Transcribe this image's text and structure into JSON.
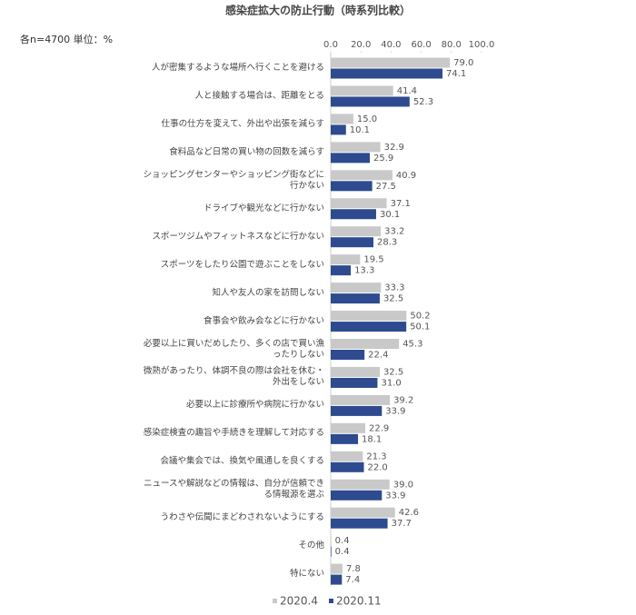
{
  "chart_data": {
    "type": "bar",
    "orientation": "horizontal",
    "title": "感染症拡大の防止行動（時系列比較）",
    "note": "各n=4700 単位：%",
    "categories": [
      "人が密集するような場所へ行くことを避ける",
      "人と接触する場合は、距離をとる",
      "仕事の仕方を変えて、外出や出張を減らす",
      "食料品など日常の買い物の回数を減らす",
      "ショッピングセンターやショッピング街などに行かない",
      "ドライブや観光などに行かない",
      "スポーツジムやフィットネスなどに行かない",
      "スポーツをしたり公園で遊ぶことをしない",
      "知人や友人の家を訪問しない",
      "食事会や飲み会などに行かない",
      "必要以上に買いだめしたり、多くの店で買い漁ったりしない",
      "微熱があったり、体調不良の際は会社を休む・外出をしない",
      "必要以上に診療所や病院に行かない",
      "感染症検査の趣旨や手続きを理解して対応する",
      "会議や集会では、換気や風通しを良くする",
      "ニュースや解説などの情報は、自分が信頼できる情報源を選ぶ",
      "うわさや伝聞にまどわされないようにする",
      "その他",
      "特にない"
    ],
    "series": [
      {
        "name": "2020.4",
        "color": "#c9c9c9",
        "values": [
          79.0,
          41.4,
          15.0,
          32.9,
          40.9,
          37.1,
          33.2,
          19.5,
          33.3,
          50.2,
          45.3,
          32.5,
          39.2,
          22.9,
          21.3,
          39.0,
          42.6,
          0.4,
          7.8
        ],
        "value_labels": [
          "79.0",
          "41.4",
          "15.0",
          "32.9",
          "40.9",
          "37.1",
          "33.2",
          "19.5",
          "33.3",
          "50.2",
          "45.3",
          "32.5",
          "39.2",
          "22.9",
          "21.3",
          "39.0",
          "42.6",
          "0.4",
          "7.8"
        ]
      },
      {
        "name": "2020.11",
        "color": "#2e4b8f",
        "values": [
          74.1,
          52.3,
          10.1,
          25.9,
          27.5,
          30.1,
          28.3,
          13.3,
          32.5,
          50.1,
          22.4,
          31.0,
          33.9,
          18.1,
          22.0,
          33.9,
          37.7,
          0.4,
          7.4
        ],
        "value_labels": [
          "74.1",
          "52.3",
          "10.1",
          "25.9",
          "27.5",
          "30.1",
          "28.3",
          "13.3",
          "32.5",
          "50.1",
          "22.4",
          "31.0",
          "33.9",
          "18.1",
          "22.0",
          "33.9",
          "37.7",
          "0.4",
          "7.4"
        ]
      }
    ],
    "xlim": [
      0,
      100
    ],
    "xticks": [
      {
        "value": 0,
        "label": "0.0"
      },
      {
        "value": 20,
        "label": "20.0"
      },
      {
        "value": 40,
        "label": "40.0"
      },
      {
        "value": 60,
        "label": "60.0"
      },
      {
        "value": 80,
        "label": "80.0"
      },
      {
        "value": 100,
        "label": "100.0"
      }
    ],
    "grid": false
  }
}
